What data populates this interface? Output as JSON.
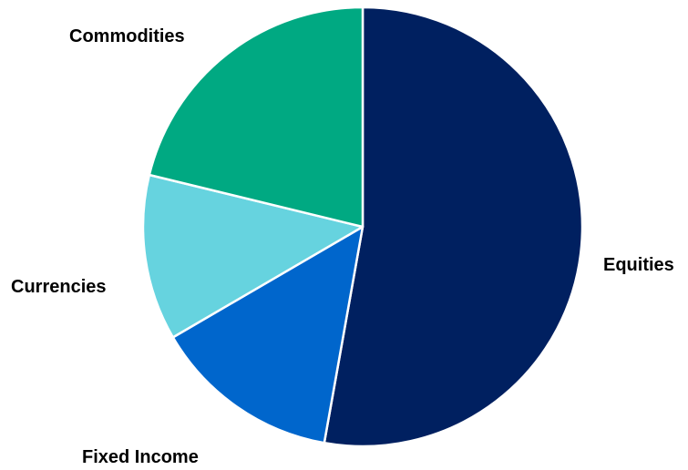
{
  "chart_data": {
    "type": "pie",
    "title": "",
    "slices": [
      {
        "label": "Equities",
        "value": 52.8,
        "color": "#002060"
      },
      {
        "label": "Fixed Income",
        "value": 13.8,
        "color": "#0066CC"
      },
      {
        "label": "Currencies",
        "value": 12.2,
        "color": "#66D3DF"
      },
      {
        "label": "Commodities",
        "value": 21.2,
        "color": "#00A982"
      }
    ],
    "start_angle_deg": 0,
    "direction": "clockwise",
    "slice_border_color": "#ffffff",
    "legend": "none"
  }
}
